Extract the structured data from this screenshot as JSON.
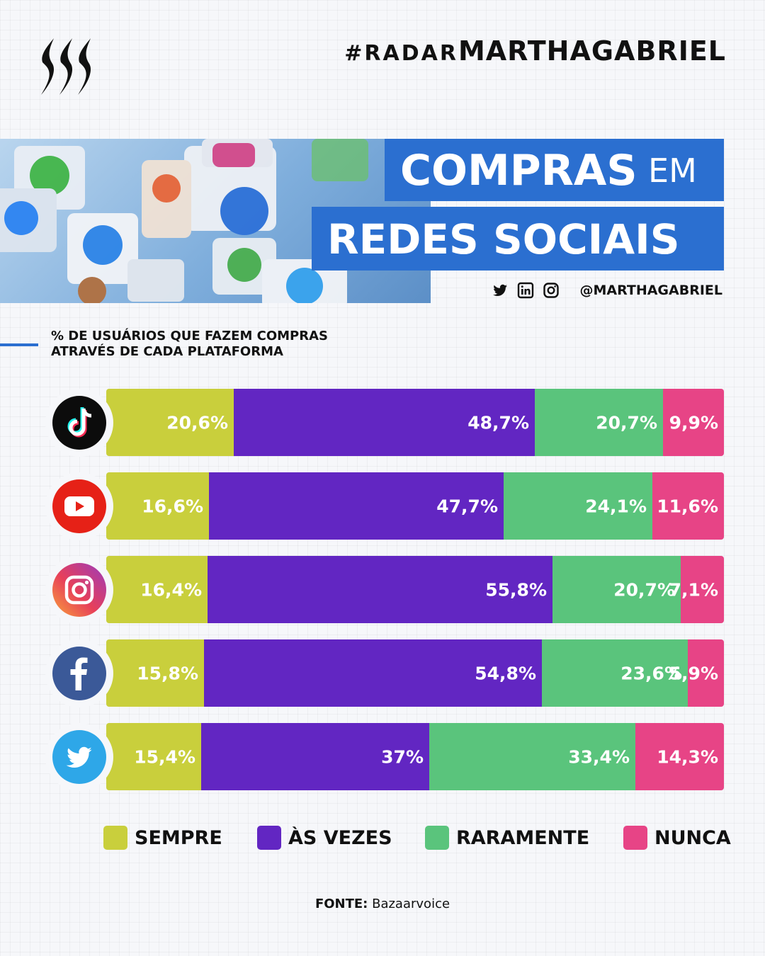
{
  "header": {
    "hashtag_prefix": "#RADAR",
    "hashtag_main": "MARTHAGABRIEL",
    "title_line1": "COMPRAS",
    "title_line1_small": "EM",
    "title_line2": "REDES SOCIAIS",
    "handle": "@MARTHAGABRIEL",
    "social_icons": [
      "twitter-icon",
      "linkedin-icon",
      "instagram-icon"
    ]
  },
  "subtitle": {
    "line1": "% DE USUÁRIOS QUE FAZEM COMPRAS",
    "line2": "ATRAVÉS DE CADA PLATAFORMA"
  },
  "colors": {
    "sempre": "#c9cf3c",
    "as_vezes": "#6226c2",
    "raramente": "#5ac47c",
    "nunca": "#e74486",
    "accent": "#2b6fd0"
  },
  "chart_data": {
    "type": "bar",
    "orientation": "horizontal",
    "stacked": true,
    "categories": [
      "TikTok",
      "YouTube",
      "Instagram",
      "Facebook",
      "Twitter"
    ],
    "category_icons": [
      "tiktok-icon",
      "youtube-icon",
      "instagram-icon",
      "facebook-icon",
      "twitter-icon"
    ],
    "series": [
      {
        "name": "SEMPRE",
        "values": [
          20.6,
          16.6,
          16.4,
          15.8,
          15.4
        ],
        "labels": [
          "20,6%",
          "16,6%",
          "16,4%",
          "15,8%",
          "15,4%"
        ]
      },
      {
        "name": "ÀS VEZES",
        "values": [
          48.7,
          47.7,
          55.8,
          54.8,
          37
        ],
        "labels": [
          "48,7%",
          "47,7%",
          "55,8%",
          "54,8%",
          "37%"
        ]
      },
      {
        "name": "RARAMENTE",
        "values": [
          20.7,
          24.1,
          20.7,
          23.6,
          33.4
        ],
        "labels": [
          "20,7%",
          "24,1%",
          "20,7%",
          "23,6%",
          "33,4%"
        ]
      },
      {
        "name": "NUNCA",
        "values": [
          9.9,
          11.6,
          7.1,
          5.9,
          14.3
        ],
        "labels": [
          "9,9%",
          "11,6%",
          "7,1%",
          "5,9%",
          "14,3%"
        ]
      }
    ]
  },
  "legend": [
    "SEMPRE",
    "ÀS VEZES",
    "RARAMENTE",
    "NUNCA"
  ],
  "source": {
    "label": "FONTE:",
    "value": "Bazaarvoice"
  }
}
